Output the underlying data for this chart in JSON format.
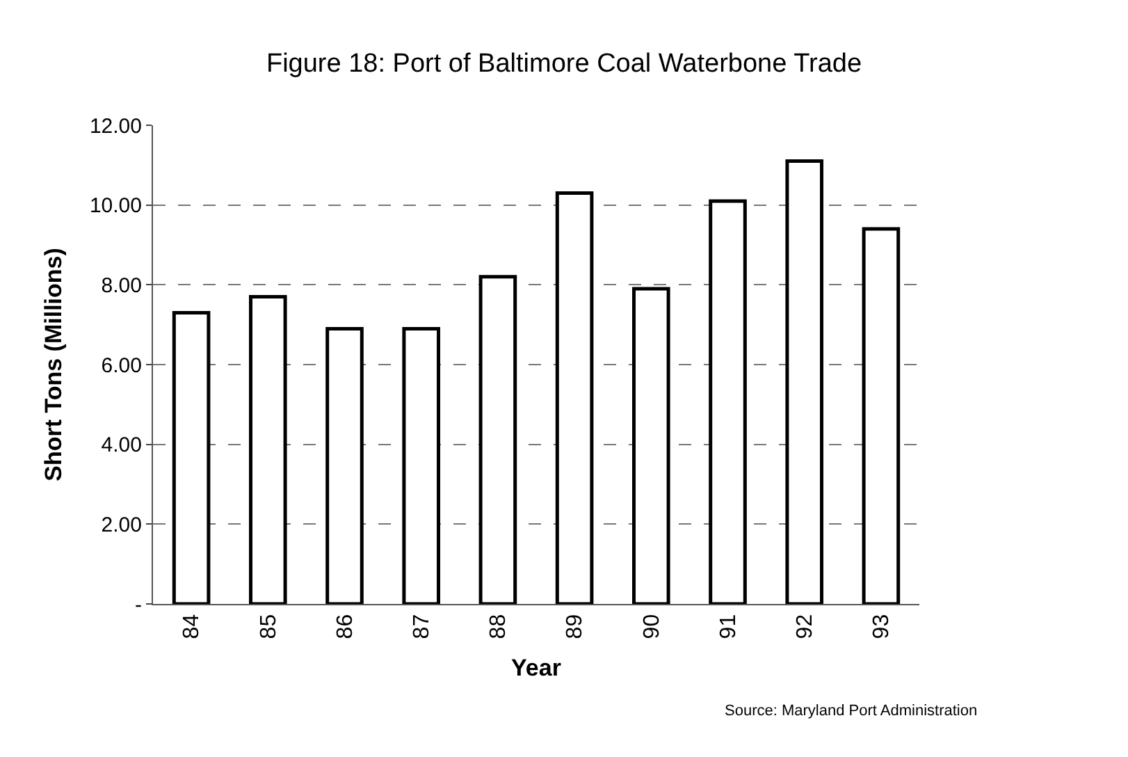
{
  "chart_data": {
    "type": "bar",
    "title": "Figure 18: Port of Baltimore Coal Waterbone Trade",
    "xlabel": "Year",
    "ylabel": "Short Tons (Millions)",
    "categories": [
      "84",
      "85",
      "86",
      "87",
      "88",
      "89",
      "90",
      "91",
      "92",
      "93"
    ],
    "values": [
      7.3,
      7.7,
      6.9,
      6.9,
      8.2,
      10.3,
      7.9,
      10.1,
      11.1,
      9.4
    ],
    "color": "#ffffff",
    "ylim": [
      0,
      12
    ],
    "yticks": [
      {
        "value": 0,
        "label": "-"
      },
      {
        "value": 2,
        "label": "2.00"
      },
      {
        "value": 4,
        "label": "4.00"
      },
      {
        "value": 6,
        "label": "6.00"
      },
      {
        "value": 8,
        "label": "8.00"
      },
      {
        "value": 10,
        "label": "10.00"
      },
      {
        "value": 12,
        "label": "12.00"
      }
    ],
    "grid": "y",
    "line_style": "dashed",
    "annotations": [
      "Source: Maryland Port Administration"
    ]
  }
}
